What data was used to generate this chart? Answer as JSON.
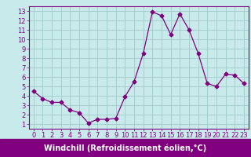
{
  "x": [
    0,
    1,
    2,
    3,
    4,
    5,
    6,
    7,
    8,
    9,
    10,
    11,
    12,
    13,
    14,
    15,
    16,
    17,
    18,
    19,
    20,
    21,
    22,
    23
  ],
  "y": [
    4.5,
    3.7,
    3.3,
    3.3,
    2.5,
    2.2,
    1.1,
    1.5,
    1.5,
    1.6,
    3.9,
    5.5,
    8.5,
    12.9,
    12.5,
    10.5,
    12.7,
    11.0,
    8.5,
    5.3,
    5.0,
    6.3,
    6.2,
    5.3
  ],
  "line_color": "#800080",
  "marker": "D",
  "marker_size": 2.5,
  "bg_color": "#c8eaea",
  "grid_color": "#a0cccc",
  "xlabel": "Windchill (Refroidissement éolien,°C)",
  "xlabel_bg": "#800080",
  "xlabel_fg": "#ffffff",
  "xlabel_fontsize": 7.0,
  "xlim": [
    -0.5,
    23.5
  ],
  "ylim": [
    0.5,
    13.5
  ],
  "xticks": [
    0,
    1,
    2,
    3,
    4,
    5,
    6,
    7,
    8,
    9,
    10,
    11,
    12,
    13,
    14,
    15,
    16,
    17,
    18,
    19,
    20,
    21,
    22,
    23
  ],
  "yticks": [
    1,
    2,
    3,
    4,
    5,
    6,
    7,
    8,
    9,
    10,
    11,
    12,
    13
  ],
  "tick_color": "#800080",
  "tick_fontsize": 6.0,
  "spine_color": "#800080"
}
